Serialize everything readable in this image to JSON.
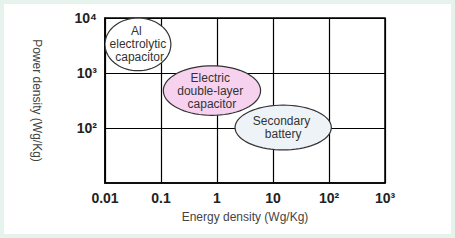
{
  "chart_data": {
    "type": "region",
    "x_label": "Energy density (Wg/Kg)",
    "y_label": "Power density (Wg/Kg)",
    "log": true,
    "grid": true,
    "xlim": [
      0.01,
      1000
    ],
    "xticks": [
      0.01,
      0.1,
      1,
      10,
      {
        "value": 100,
        "label": "10²"
      },
      {
        "value": 1000,
        "label": "10³"
      }
    ],
    "ylim": [
      10,
      10000
    ],
    "yticks": [
      {
        "value": 100,
        "label": "10²"
      },
      {
        "value": 1000,
        "label": "10³"
      },
      {
        "value": 10000,
        "label": "10⁴"
      }
    ],
    "series": [
      {
        "name": "Al electrolytic capacitor",
        "color": "#ffffff",
        "x": [
          0.01,
          0.15
        ],
        "y": [
          1100,
          10000
        ]
      },
      {
        "name": "Electric double-layer capacitor",
        "color": "#f6d2ef",
        "x": [
          0.11,
          6
        ],
        "y": [
          170,
          1350
        ]
      },
      {
        "name": "Secondary battery",
        "color": "#eef3f8",
        "x": [
          2.1,
          110
        ],
        "y": [
          40,
          260
        ]
      }
    ]
  }
}
